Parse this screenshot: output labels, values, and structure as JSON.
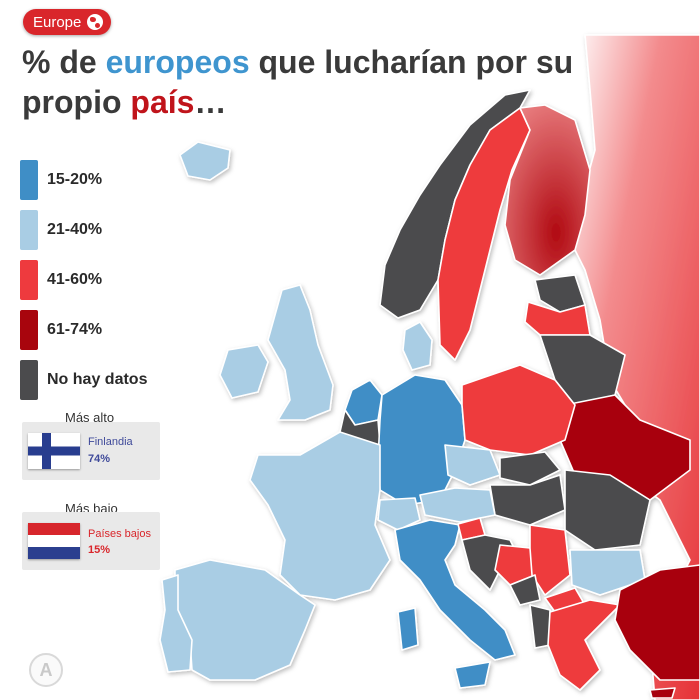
{
  "badge": {
    "label": "Europe",
    "icon": "globe-icon"
  },
  "title": {
    "part1": "% de ",
    "highlight1": "europeos",
    "part2": " que lucharían por su propio ",
    "highlight2": "país",
    "part3": "…"
  },
  "colors": {
    "c15_20": "#3f8ec6",
    "c21_40": "#a9cde4",
    "c41_60": "#ee3a3e",
    "c61_74": "#a8050d",
    "no_data": "#4b4b4d",
    "brand": "#d9262b",
    "highest_text": "#3f4a9a",
    "lowest_text": "#d9262b"
  },
  "legend": [
    {
      "label": "15-20%",
      "color_key": "c15_20"
    },
    {
      "label": "21-40%",
      "color_key": "c21_40"
    },
    {
      "label": "41-60%",
      "color_key": "c41_60"
    },
    {
      "label": "61-74%",
      "color_key": "c61_74"
    },
    {
      "label": "No hay datos",
      "color_key": "no_data"
    }
  ],
  "highest": {
    "heading": "Más alto",
    "country": "Finlandia",
    "value": "74%",
    "flag_icon": "finland-flag-icon"
  },
  "lowest": {
    "heading": "Más bajo",
    "country": "Países bajos",
    "value": "15%",
    "flag_icon": "netherlands-flag-icon"
  },
  "logo": {
    "icon": "brand-logo-icon",
    "glyph": "A"
  }
}
